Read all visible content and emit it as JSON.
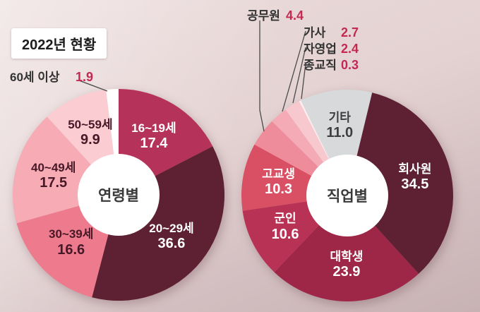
{
  "title": "2022년 현황",
  "colors": {
    "value_accent": "#c22a52",
    "callout_line": "#4a4a4a"
  },
  "chart_data": [
    {
      "type": "pie",
      "variant": "donut",
      "id": "age",
      "center_label": "연령별",
      "start_angle": 0,
      "segments": [
        {
          "label": "16~19세",
          "value": 17.4,
          "display": "17.4",
          "color": "#b5335a",
          "text_color": "#ffffff",
          "label_inside": true
        },
        {
          "label": "20~29세",
          "value": 36.6,
          "display": "36.6",
          "color": "#5e2134",
          "text_color": "#ffffff",
          "label_inside": true
        },
        {
          "label": "30~39세",
          "value": 16.6,
          "display": "16.6",
          "color": "#ee7b8d",
          "text_color": "#471826",
          "label_inside": true
        },
        {
          "label": "40~49세",
          "value": 17.5,
          "display": "17.5",
          "color": "#f6abb5",
          "text_color": "#471826",
          "label_inside": true
        },
        {
          "label": "50~59세",
          "value": 9.9,
          "display": "9.9",
          "color": "#fbccd2",
          "text_color": "#471826",
          "label_inside": true
        },
        {
          "label": "60세 이상",
          "value": 1.9,
          "display": "1.9",
          "color": "#ffffff",
          "text_color": "#3c3c3c",
          "label_inside": false
        }
      ]
    },
    {
      "type": "pie",
      "variant": "donut",
      "id": "job",
      "center_label": "직업별",
      "start_angle": -26,
      "segments": [
        {
          "label": "기타",
          "value": 11.0,
          "display": "11.0",
          "color": "#d7d9db",
          "text_color": "#3e3e3e",
          "label_inside": true
        },
        {
          "label": "회사원",
          "value": 34.5,
          "display": "34.5",
          "color": "#5e2134",
          "text_color": "#ffffff",
          "label_inside": true
        },
        {
          "label": "대학생",
          "value": 23.9,
          "display": "23.9",
          "color": "#9e2646",
          "text_color": "#ffffff",
          "label_inside": true
        },
        {
          "label": "군인",
          "value": 10.6,
          "display": "10.6",
          "color": "#b83255",
          "text_color": "#ffffff",
          "label_inside": true
        },
        {
          "label": "고교생",
          "value": 10.3,
          "display": "10.3",
          "color": "#d94f63",
          "text_color": "#ffffff",
          "label_inside": true
        },
        {
          "label": "공무원",
          "value": 4.4,
          "display": "4.4",
          "color": "#ef8c9b",
          "text_color": "#3e3e3e",
          "label_inside": false
        },
        {
          "label": "가사",
          "value": 2.7,
          "display": "2.7",
          "color": "#f4abb6",
          "text_color": "#3e3e3e",
          "label_inside": false
        },
        {
          "label": "자영업",
          "value": 2.4,
          "display": "2.4",
          "color": "#f8c8cf",
          "text_color": "#3e3e3e",
          "label_inside": false
        },
        {
          "label": "종교직",
          "value": 0.3,
          "display": "0.3",
          "color": "#fdeef0",
          "text_color": "#3e3e3e",
          "label_inside": false
        }
      ]
    }
  ]
}
